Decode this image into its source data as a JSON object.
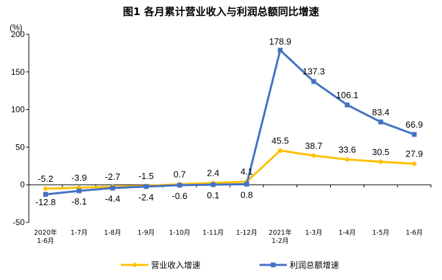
{
  "chart_data": {
    "type": "line",
    "title": "图1  各月累计营业收入与利润总额同比增速",
    "ylabel": "(%)",
    "xlabel": "",
    "ylim": [
      -50,
      200
    ],
    "yticks": [
      -50,
      0,
      50,
      100,
      150,
      200
    ],
    "grid": false,
    "legend": "bottom",
    "categories": [
      [
        "2020年",
        "1-6月"
      ],
      [
        "1-7月"
      ],
      [
        "1-8月"
      ],
      [
        "1-9月"
      ],
      [
        "1-10月"
      ],
      [
        "1-11月"
      ],
      [
        "1-12月"
      ],
      [
        "2021年",
        "1-2月"
      ],
      [
        "1-3月"
      ],
      [
        "1-4月"
      ],
      [
        "1-5月"
      ],
      [
        "1-6月"
      ]
    ],
    "series": [
      {
        "name": "营业收入增速",
        "color": "#FFC000",
        "values": [
          -5.2,
          -3.9,
          -2.7,
          -1.5,
          0.7,
          2.4,
          4.1,
          45.5,
          38.7,
          33.6,
          30.5,
          27.9
        ],
        "labels": [
          "-5.2",
          "-3.9",
          "-2.7",
          "-1.5",
          "0.7",
          "2.4",
          "4.1",
          "45.5",
          "38.7",
          "33.6",
          "30.5",
          "27.9"
        ]
      },
      {
        "name": "利润总额增速",
        "color": "#4472C4",
        "values": [
          -12.8,
          -8.1,
          -4.4,
          -2.4,
          -0.6,
          0.1,
          0.8,
          178.9,
          137.3,
          106.1,
          83.4,
          66.9
        ],
        "labels": [
          "-12.8",
          "-8.1",
          "-4.4",
          "-2.4",
          "-0.6",
          "0.1",
          "0.8",
          "178.9",
          "137.3",
          "106.1",
          "83.4",
          "66.9"
        ]
      }
    ]
  }
}
